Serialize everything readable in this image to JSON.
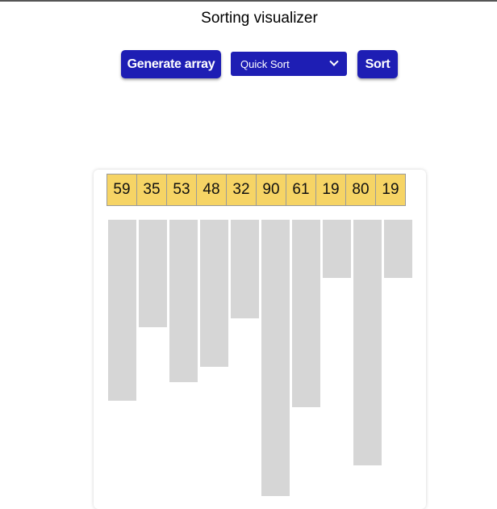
{
  "page": {
    "title": "Sorting visualizer"
  },
  "controls": {
    "generate_label": "Generate array",
    "algorithm_selected": "Quick Sort",
    "sort_label": "Sort",
    "button_color": "#1e1eb4"
  },
  "array": {
    "values": [
      59,
      35,
      53,
      48,
      32,
      90,
      61,
      19,
      80,
      19
    ],
    "max_value": 90,
    "cell_color": "#f6d465",
    "bar_color": "#d6d6d6"
  }
}
